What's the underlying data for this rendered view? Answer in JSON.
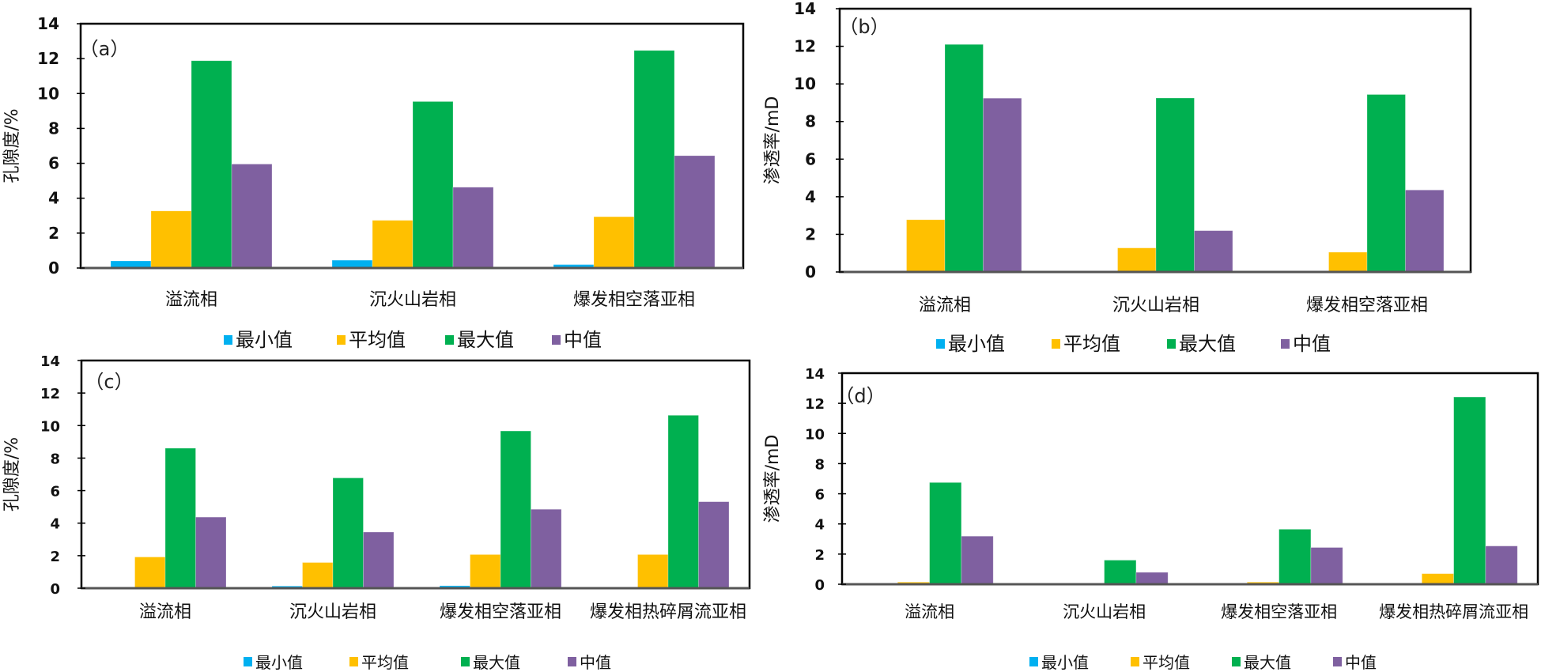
{
  "series_names": [
    "最小值",
    "平均值",
    "最大值",
    "中值"
  ],
  "series_colors": [
    "#00B0F0",
    "#FFC000",
    "#00B050",
    "#7F60A0"
  ],
  "chart_data": [
    {
      "id": "a",
      "type": "bar",
      "panel_label": "（a）",
      "title": "",
      "xlabel": "",
      "ylabel": "孔隙度/%",
      "ylim": [
        0,
        14
      ],
      "yticks": [
        0,
        2,
        4,
        6,
        8,
        10,
        12,
        14
      ],
      "grid": false,
      "legend": "bottom",
      "categories": [
        "溢流相",
        "沉火山岩相",
        "爆发相空落亚相"
      ],
      "series": [
        {
          "name": "最小值",
          "values": [
            0.41,
            0.45,
            0.2
          ]
        },
        {
          "name": "平均值",
          "values": [
            3.27,
            2.73,
            2.94
          ]
        },
        {
          "name": "最大值",
          "values": [
            11.88,
            9.54,
            12.47
          ]
        },
        {
          "name": "中值",
          "values": [
            5.96,
            4.63,
            6.44
          ]
        }
      ]
    },
    {
      "id": "b",
      "type": "bar",
      "panel_label": "（b）",
      "title": "",
      "xlabel": "",
      "ylabel": "渗透率/mD",
      "ylim": [
        0,
        14
      ],
      "yticks": [
        0,
        2,
        4,
        6,
        8,
        10,
        12,
        14
      ],
      "grid": false,
      "legend": "bottom",
      "categories": [
        "溢流相",
        "沉火山岩相",
        "爆发相空落亚相"
      ],
      "series": [
        {
          "name": "最小值",
          "values": [
            0.02,
            0.03,
            0.03
          ]
        },
        {
          "name": "平均值",
          "values": [
            2.78,
            1.28,
            1.05
          ]
        },
        {
          "name": "最大值",
          "values": [
            12.1,
            9.25,
            9.44
          ]
        },
        {
          "name": "中值",
          "values": [
            9.24,
            2.2,
            4.36
          ]
        }
      ]
    },
    {
      "id": "c",
      "type": "bar",
      "panel_label": "（c）",
      "title": "",
      "xlabel": "",
      "ylabel": "孔隙度/%",
      "ylim": [
        0,
        14
      ],
      "yticks": [
        0,
        2,
        4,
        6,
        8,
        10,
        12,
        14
      ],
      "grid": false,
      "legend": "bottom",
      "categories": [
        "溢流相",
        "沉火山岩相",
        "爆发相空落亚相",
        "爆发相热碎屑流亚相"
      ],
      "series": [
        {
          "name": "最小值",
          "values": [
            0.06,
            0.13,
            0.15,
            0.06
          ]
        },
        {
          "name": "平均值",
          "values": [
            1.92,
            1.58,
            2.07,
            2.07
          ]
        },
        {
          "name": "最大值",
          "values": [
            8.61,
            6.78,
            9.67,
            10.63
          ]
        },
        {
          "name": "中值",
          "values": [
            4.37,
            3.45,
            4.85,
            5.32
          ]
        }
      ]
    },
    {
      "id": "d",
      "type": "bar",
      "panel_label": "（d）",
      "title": "",
      "xlabel": "",
      "ylabel": "渗透率/mD",
      "ylim": [
        0,
        14
      ],
      "yticks": [
        0,
        2,
        4,
        6,
        8,
        10,
        12,
        14
      ],
      "grid": false,
      "legend": "bottom",
      "categories": [
        "溢流相",
        "沉火山岩相",
        "爆发相空落亚相",
        "爆发相热碎屑流亚相"
      ],
      "series": [
        {
          "name": "最小值",
          "values": [
            0.01,
            0.01,
            0.02,
            0.03
          ]
        },
        {
          "name": "平均值",
          "values": [
            0.14,
            0.03,
            0.14,
            0.7
          ]
        },
        {
          "name": "最大值",
          "values": [
            6.75,
            1.6,
            3.65,
            12.42
          ]
        },
        {
          "name": "中值",
          "values": [
            3.19,
            0.79,
            2.44,
            2.54
          ]
        }
      ]
    }
  ]
}
